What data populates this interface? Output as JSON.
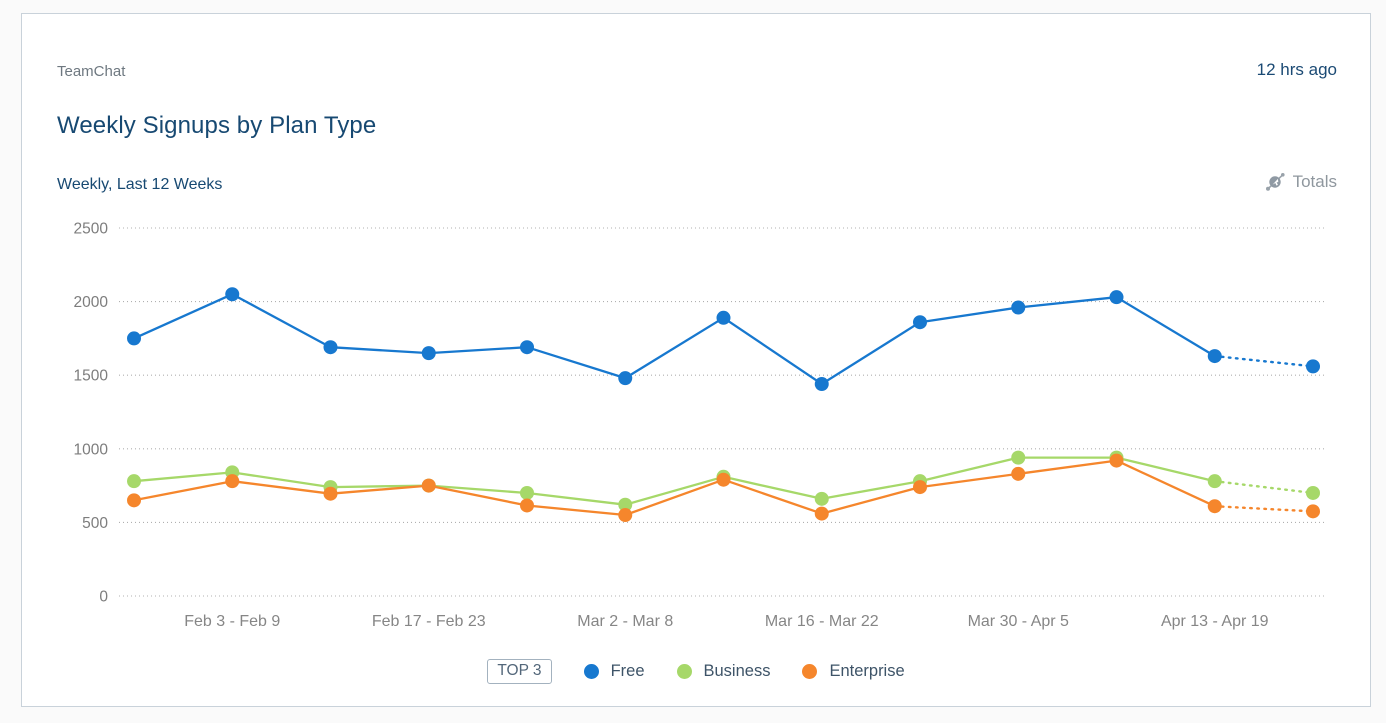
{
  "card": {
    "source": "TeamChat",
    "updated": "12 hrs ago",
    "title": "Weekly Signups by Plan Type",
    "subtitle": "Weekly, Last 12 Weeks",
    "totals_label": "Totals"
  },
  "legend": {
    "badge": "TOP 3"
  },
  "chart_data": {
    "type": "line",
    "title": "Weekly Signups by Plan Type",
    "subtitle": "Weekly, Last 12 Weeks",
    "num_points": 13,
    "x_tick_labels": [
      "Feb 3 - Feb 9",
      "Feb 17 - Feb 23",
      "Mar 2 - Mar 8",
      "Mar 16 - Mar 22",
      "Mar 30 - Apr 5",
      "Apr 13 - Apr 19"
    ],
    "x_tick_indices": [
      1,
      3,
      5,
      7,
      9,
      11
    ],
    "y_ticks": [
      0,
      500,
      1000,
      1500,
      2000,
      2500
    ],
    "ylim": [
      0,
      2500
    ],
    "grid": "dotted-horizontal",
    "legend_position": "bottom",
    "last_segment_style": "dotted",
    "series": [
      {
        "name": "Free",
        "color": "#1778cf",
        "values": [
          1750,
          2050,
          1690,
          1650,
          1690,
          1480,
          1890,
          1440,
          1860,
          1960,
          2030,
          1630,
          1560
        ]
      },
      {
        "name": "Business",
        "color": "#a6d869",
        "values": [
          780,
          840,
          740,
          750,
          700,
          620,
          810,
          660,
          780,
          940,
          940,
          780,
          700
        ]
      },
      {
        "name": "Enterprise",
        "color": "#f5862c",
        "values": [
          650,
          780,
          695,
          750,
          615,
          550,
          790,
          560,
          740,
          830,
          920,
          610,
          575
        ]
      }
    ],
    "axis_color": "#7d7d7d",
    "grid_color": "#b0b0b0"
  }
}
